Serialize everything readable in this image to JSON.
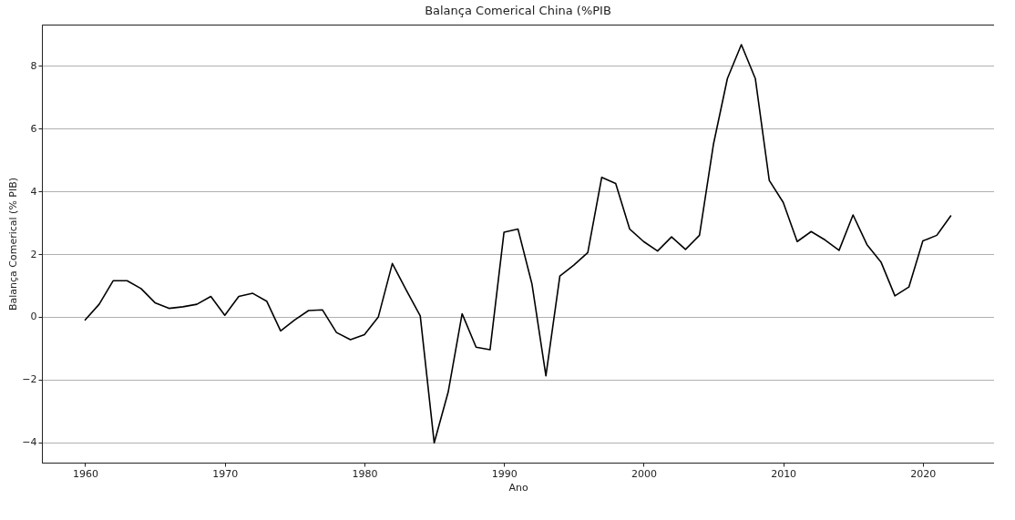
{
  "chart_data": {
    "type": "line",
    "title": "Balança Comerical China (%PIB",
    "xlabel": "Ano",
    "ylabel": "Balança Comerical (% PIB)",
    "x": [
      1960,
      1961,
      1962,
      1963,
      1964,
      1965,
      1966,
      1967,
      1968,
      1969,
      1970,
      1971,
      1972,
      1973,
      1974,
      1975,
      1976,
      1977,
      1978,
      1979,
      1980,
      1981,
      1982,
      1983,
      1984,
      1985,
      1986,
      1987,
      1988,
      1989,
      1990,
      1991,
      1992,
      1993,
      1994,
      1995,
      1996,
      1997,
      1998,
      1999,
      2000,
      2001,
      2002,
      2003,
      2004,
      2005,
      2006,
      2007,
      2008,
      2009,
      2010,
      2011,
      2012,
      2013,
      2014,
      2015,
      2016,
      2017,
      2018,
      2019,
      2020,
      2021,
      2022
    ],
    "series": [
      {
        "color": "#000000",
        "values": [
          -0.1,
          0.4,
          1.15,
          1.15,
          0.9,
          0.45,
          0.27,
          0.32,
          0.4,
          0.65,
          0.05,
          0.65,
          0.75,
          0.5,
          -0.45,
          -0.1,
          0.2,
          0.22,
          -0.5,
          -0.73,
          -0.57,
          0.0,
          1.7,
          0.85,
          0.03,
          -4.02,
          -2.4,
          0.1,
          -0.97,
          -1.05,
          2.7,
          2.8,
          1.05,
          -1.88,
          1.3,
          1.65,
          2.05,
          4.45,
          4.25,
          2.8,
          2.4,
          2.1,
          2.55,
          2.15,
          2.6,
          5.5,
          7.6,
          8.68,
          7.6,
          4.35,
          3.65,
          2.4,
          2.72,
          2.45,
          2.12,
          3.25,
          2.3,
          1.75,
          0.67,
          0.95,
          2.42,
          2.6,
          3.22
        ]
      }
    ],
    "xlim": [
      1956.9,
      2025.1
    ],
    "xticks": [
      1960,
      1970,
      1980,
      1990,
      2000,
      2010,
      2020
    ],
    "ylim": [
      -4.65,
      9.32
    ],
    "yticks": [
      -4,
      -2,
      0,
      2,
      4,
      6,
      8
    ],
    "grid": "y",
    "legend": false,
    "marker": "none",
    "line_style": "solid"
  }
}
